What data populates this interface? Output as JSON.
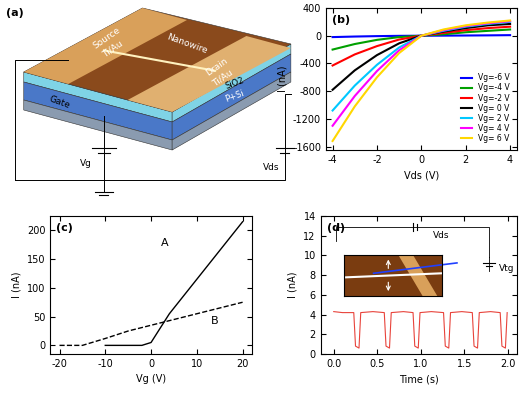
{
  "schematic": {
    "panel_label": "(a)",
    "labels": {
      "source": "Source",
      "source_metal": "Ti/Au",
      "nanowire": "Nanowire",
      "drain": "Drain",
      "drain_metal": "Ti/Au",
      "oxide": "SiO2",
      "substrate": "P+Si",
      "gate": "Gate",
      "gate_voltage": "Vg",
      "drain_voltage": "Vds"
    }
  },
  "chart_data": [
    {
      "panel_label": "(b)",
      "type": "line",
      "x_label": "Vds (V)",
      "y_label": "I (nA)",
      "x": [
        -4,
        -3,
        -2,
        -1,
        0,
        1,
        2,
        3,
        4
      ],
      "series": [
        {
          "name": "Vg=-6 V",
          "color": "#0000ff",
          "values": [
            -20,
            -12,
            -6,
            -2,
            0,
            1,
            3,
            5,
            8
          ]
        },
        {
          "name": "Vg=-4 V",
          "color": "#00a000",
          "values": [
            -200,
            -120,
            -60,
            -20,
            0,
            20,
            50,
            70,
            90
          ]
        },
        {
          "name": "Vg=-2 V",
          "color": "#ff0000",
          "values": [
            -430,
            -270,
            -150,
            -55,
            0,
            40,
            80,
            110,
            130
          ]
        },
        {
          "name": "Vg= 0 V",
          "color": "#000000",
          "values": [
            -780,
            -500,
            -280,
            -110,
            0,
            60,
            110,
            150,
            170
          ]
        },
        {
          "name": "Vg= 2 V",
          "color": "#00c8ff",
          "values": [
            -1080,
            -720,
            -420,
            -170,
            0,
            70,
            130,
            170,
            200
          ]
        },
        {
          "name": "Vg= 4 V",
          "color": "#ff00ff",
          "values": [
            -1300,
            -870,
            -510,
            -210,
            0,
            80,
            140,
            180,
            210
          ]
        },
        {
          "name": "Vg= 6 V",
          "color": "#ffd700",
          "values": [
            -1520,
            -1020,
            -600,
            -250,
            0,
            90,
            150,
            190,
            220
          ]
        }
      ],
      "xlim": [
        -4.3,
        4.3
      ],
      "xticks": [
        -4,
        -2,
        0,
        2,
        4
      ],
      "ylim": [
        -1650,
        400
      ],
      "yticks": [
        -1600,
        -1200,
        -800,
        -400,
        0,
        400
      ],
      "legend": "lower right"
    },
    {
      "panel_label": "(c)",
      "type": "line",
      "x_label": "Vg (V)",
      "y_label": "I (nA)",
      "series": [
        {
          "x": [
            -10,
            -4,
            -2,
            0,
            2,
            4,
            6,
            8,
            10,
            14,
            20
          ],
          "values": [
            0,
            0,
            0,
            5,
            30,
            55,
            75,
            95,
            115,
            155,
            215
          ],
          "color": "#000000",
          "line_style": "solid"
        },
        {
          "x": [
            -20,
            -15,
            -10,
            -5,
            0,
            5,
            10,
            15,
            20
          ],
          "values": [
            0,
            0,
            12,
            25,
            35,
            45,
            55,
            65,
            75
          ],
          "color": "#000000",
          "line_style": "dashed"
        }
      ],
      "annotations": [
        {
          "text": "A",
          "x": 3,
          "y": 178
        },
        {
          "text": "B",
          "x": 14,
          "y": 42
        }
      ],
      "xlim": [
        -22,
        22
      ],
      "xticks": [
        -20,
        -10,
        0,
        10,
        20
      ],
      "ylim": [
        -15,
        225
      ],
      "yticks": [
        0,
        50,
        100,
        150,
        200
      ]
    },
    {
      "panel_label": "(d)",
      "type": "line",
      "x_label": "Time (s)",
      "y_label": "I (nA)",
      "color": "#e8433b",
      "x": [
        0.0,
        0.1,
        0.23,
        0.25,
        0.29,
        0.31,
        0.45,
        0.58,
        0.6,
        0.64,
        0.66,
        0.8,
        0.91,
        0.93,
        0.97,
        0.99,
        1.12,
        1.26,
        1.28,
        1.32,
        1.34,
        1.47,
        1.59,
        1.61,
        1.65,
        1.67,
        1.8,
        1.91,
        1.93,
        1.97,
        1.99
      ],
      "values": [
        4.3,
        4.2,
        4.2,
        0.8,
        0.6,
        4.2,
        4.3,
        4.2,
        0.8,
        0.6,
        4.2,
        4.3,
        4.2,
        0.8,
        0.6,
        4.2,
        4.3,
        4.2,
        0.8,
        0.6,
        4.2,
        4.3,
        4.2,
        0.8,
        0.6,
        4.2,
        4.3,
        4.2,
        0.8,
        0.6,
        4.2
      ],
      "inset_labels": [
        "Vds",
        "Vtg"
      ],
      "xlim": [
        -0.15,
        2.1
      ],
      "xticks": [
        {
          "value": 0,
          "label": "0.0"
        },
        {
          "value": 0.5,
          "label": "0.5"
        },
        {
          "value": 1,
          "label": "1.0"
        },
        {
          "value": 1.5,
          "label": "1.5"
        },
        {
          "value": 2,
          "label": "2.0"
        }
      ],
      "ylim": [
        0,
        14
      ],
      "yticks": [
        0,
        2,
        4,
        6,
        8,
        10,
        12,
        14
      ]
    }
  ]
}
